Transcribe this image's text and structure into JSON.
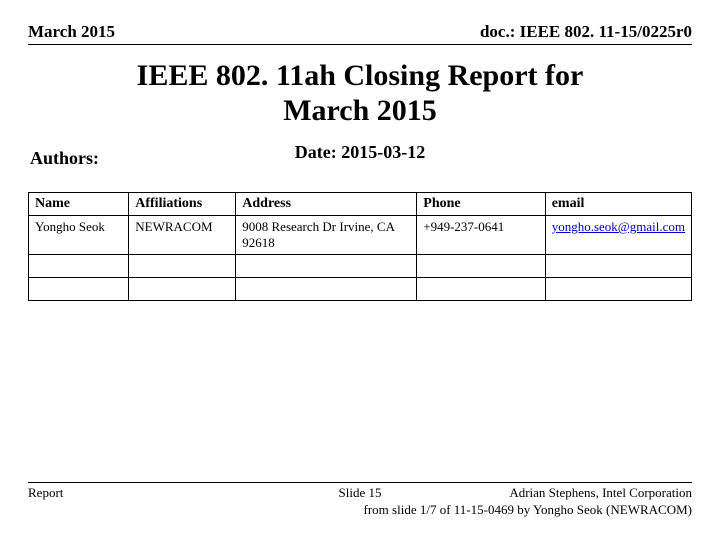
{
  "header": {
    "left": "March 2015",
    "right": "doc.: IEEE 802. 11-15/0225r0"
  },
  "title_line1": "IEEE 802. 11ah Closing Report for",
  "title_line2": "March 2015",
  "date_label": "Date: 2015-03-12",
  "authors_label": "Authors:",
  "table": {
    "columns": [
      "Name",
      "Affiliations",
      "Address",
      "Phone",
      "email"
    ],
    "row": {
      "name": "Yongho Seok",
      "affiliation": "NEWRACOM",
      "address_line1": "9008 Research Dr Irvine, CA",
      "address_line2": "92618",
      "phone": "+949-237-0641",
      "email": "yongho.seok@gmail.com"
    }
  },
  "footer": {
    "left": "Report",
    "center": "Slide 15",
    "right_line1": "Adrian Stephens, Intel Corporation",
    "right_line2": "from slide 1/7 of 11-15-0469 by Yongho Seok (NEWRACOM)"
  }
}
